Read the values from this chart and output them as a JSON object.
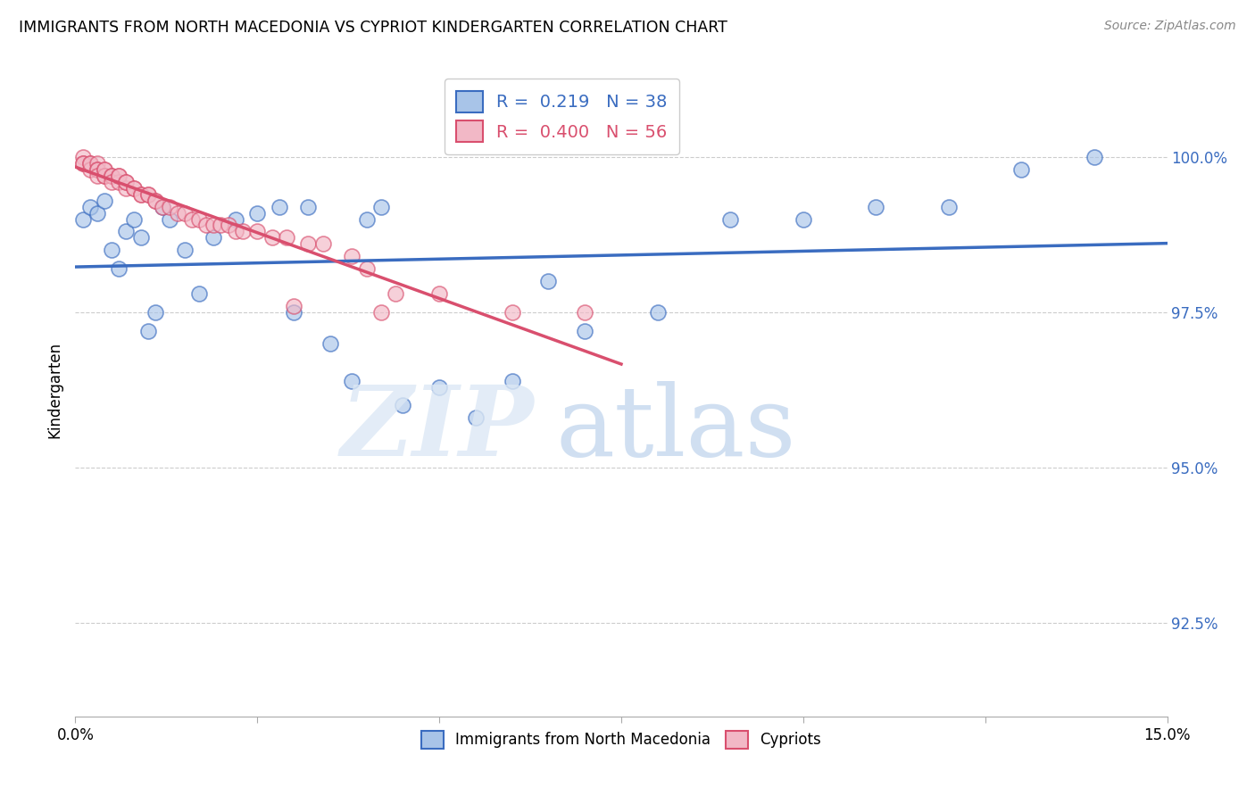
{
  "title": "IMMIGRANTS FROM NORTH MACEDONIA VS CYPRIOT KINDERGARTEN CORRELATION CHART",
  "source": "Source: ZipAtlas.com",
  "ylabel": "Kindergarten",
  "ytick_labels": [
    "92.5%",
    "95.0%",
    "97.5%",
    "100.0%"
  ],
  "ytick_values": [
    0.925,
    0.95,
    0.975,
    1.0
  ],
  "xlim": [
    0.0,
    0.15
  ],
  "ylim": [
    0.91,
    1.015
  ],
  "legend_blue_r": "0.219",
  "legend_blue_n": "38",
  "legend_pink_r": "0.400",
  "legend_pink_n": "56",
  "legend_label_blue": "Immigrants from North Macedonia",
  "legend_label_pink": "Cypriots",
  "blue_color": "#a8c4e8",
  "pink_color": "#f2b8c6",
  "trendline_blue_color": "#3a6cc0",
  "trendline_pink_color": "#d94f6e",
  "blue_x": [
    0.001,
    0.002,
    0.003,
    0.004,
    0.005,
    0.006,
    0.007,
    0.008,
    0.009,
    0.01,
    0.011,
    0.012,
    0.013,
    0.015,
    0.017,
    0.019,
    0.022,
    0.025,
    0.028,
    0.03,
    0.032,
    0.035,
    0.038,
    0.04,
    0.042,
    0.045,
    0.05,
    0.055,
    0.06,
    0.065,
    0.07,
    0.08,
    0.09,
    0.1,
    0.11,
    0.12,
    0.13,
    0.14
  ],
  "blue_y": [
    0.99,
    0.992,
    0.991,
    0.993,
    0.985,
    0.982,
    0.988,
    0.99,
    0.987,
    0.972,
    0.975,
    0.992,
    0.99,
    0.985,
    0.978,
    0.987,
    0.99,
    0.991,
    0.992,
    0.975,
    0.992,
    0.97,
    0.964,
    0.99,
    0.992,
    0.96,
    0.963,
    0.958,
    0.964,
    0.98,
    0.972,
    0.975,
    0.99,
    0.99,
    0.992,
    0.992,
    0.998,
    1.0
  ],
  "pink_x": [
    0.001,
    0.001,
    0.001,
    0.002,
    0.002,
    0.002,
    0.003,
    0.003,
    0.003,
    0.003,
    0.004,
    0.004,
    0.004,
    0.004,
    0.005,
    0.005,
    0.005,
    0.006,
    0.006,
    0.006,
    0.007,
    0.007,
    0.007,
    0.008,
    0.008,
    0.009,
    0.009,
    0.01,
    0.01,
    0.011,
    0.011,
    0.012,
    0.013,
    0.014,
    0.015,
    0.016,
    0.017,
    0.018,
    0.019,
    0.02,
    0.021,
    0.022,
    0.023,
    0.025,
    0.027,
    0.029,
    0.03,
    0.032,
    0.034,
    0.038,
    0.04,
    0.042,
    0.044,
    0.05,
    0.06,
    0.07
  ],
  "pink_y": [
    1.0,
    0.999,
    0.999,
    0.999,
    0.998,
    0.999,
    0.999,
    0.998,
    0.998,
    0.997,
    0.998,
    0.997,
    0.997,
    0.998,
    0.997,
    0.997,
    0.996,
    0.996,
    0.997,
    0.997,
    0.995,
    0.996,
    0.996,
    0.995,
    0.995,
    0.994,
    0.994,
    0.994,
    0.994,
    0.993,
    0.993,
    0.992,
    0.992,
    0.991,
    0.991,
    0.99,
    0.99,
    0.989,
    0.989,
    0.989,
    0.989,
    0.988,
    0.988,
    0.988,
    0.987,
    0.987,
    0.976,
    0.986,
    0.986,
    0.984,
    0.982,
    0.975,
    0.978,
    0.978,
    0.975,
    0.975
  ]
}
